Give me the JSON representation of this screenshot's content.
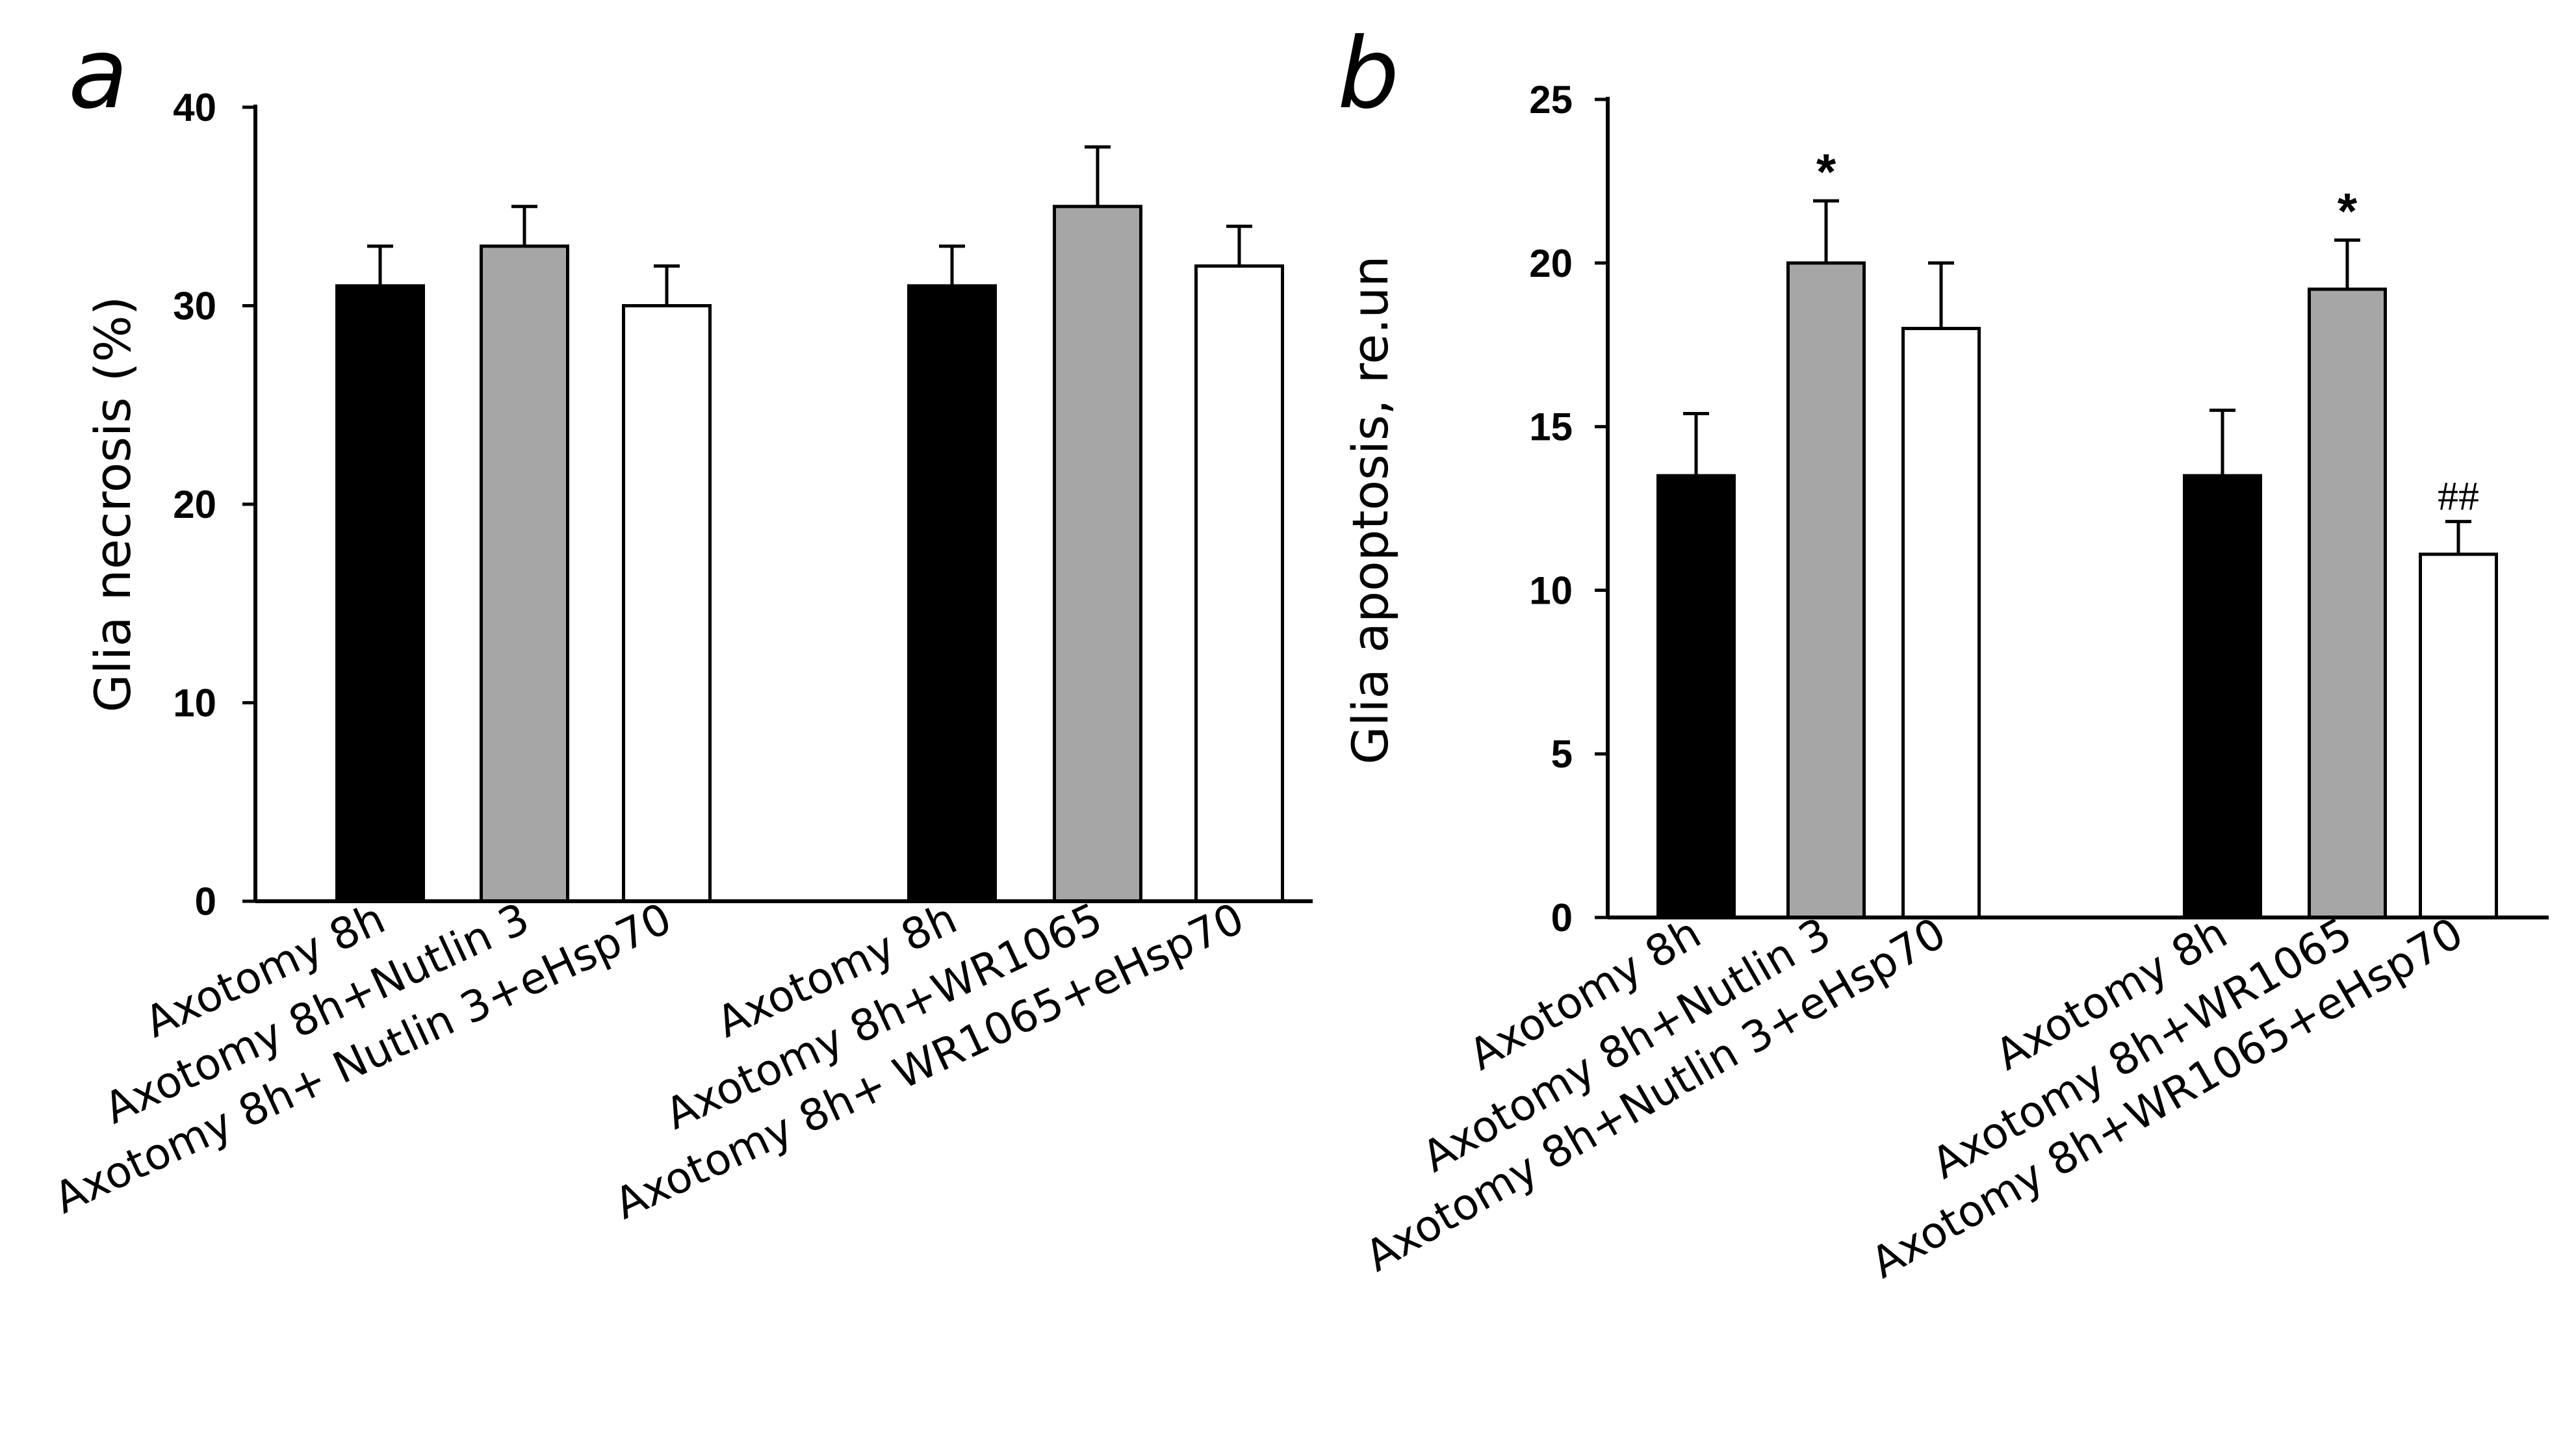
{
  "colors": {
    "black": "#000000",
    "gray": "#a6a6a6",
    "white": "#ffffff"
  },
  "chart_data": [
    {
      "type": "bar",
      "panel_label": "a",
      "ylabel": "Glia necrosis (%)",
      "xlabel": "",
      "ylim": [
        0,
        40
      ],
      "yticks": [
        0,
        10,
        20,
        30,
        40
      ],
      "categories": [
        "Axotomy 8h",
        "Axotomy 8h+Nutlin 3",
        "Axotomy 8h+ Nutlin 3+eHsp70",
        "Axotomy 8h",
        "Axotomy 8h+WR1065",
        "Axotomy 8h+ WR1065+eHsp70"
      ],
      "values": [
        31,
        33,
        30,
        31,
        35,
        32
      ],
      "errors": [
        2,
        2,
        2,
        2,
        3,
        2
      ],
      "fills": [
        "black",
        "gray",
        "white",
        "black",
        "gray",
        "white"
      ],
      "annotations": [
        "",
        "",
        "",
        "",
        "",
        ""
      ]
    },
    {
      "type": "bar",
      "panel_label": "b",
      "ylabel": "Glia apoptosis, re.un",
      "xlabel": "",
      "ylim": [
        0,
        25
      ],
      "yticks": [
        0,
        5,
        10,
        15,
        20,
        25
      ],
      "categories": [
        "Axotomy 8h",
        "Axotomy 8h+Nutlin 3",
        "Axotomy 8h+Nutlin 3+eHsp70",
        "Axotomy 8h",
        "Axotomy 8h+WR1065",
        "Axotomy 8h+WR1065+eHsp70"
      ],
      "values": [
        13.5,
        20,
        18,
        13.5,
        19.2,
        11.1
      ],
      "errors": [
        1.9,
        1.9,
        2.0,
        2.0,
        1.5,
        1.0
      ],
      "fills": [
        "black",
        "gray",
        "white",
        "black",
        "gray",
        "white"
      ],
      "annotations": [
        "",
        "*",
        "",
        "",
        "*",
        "##"
      ]
    }
  ]
}
